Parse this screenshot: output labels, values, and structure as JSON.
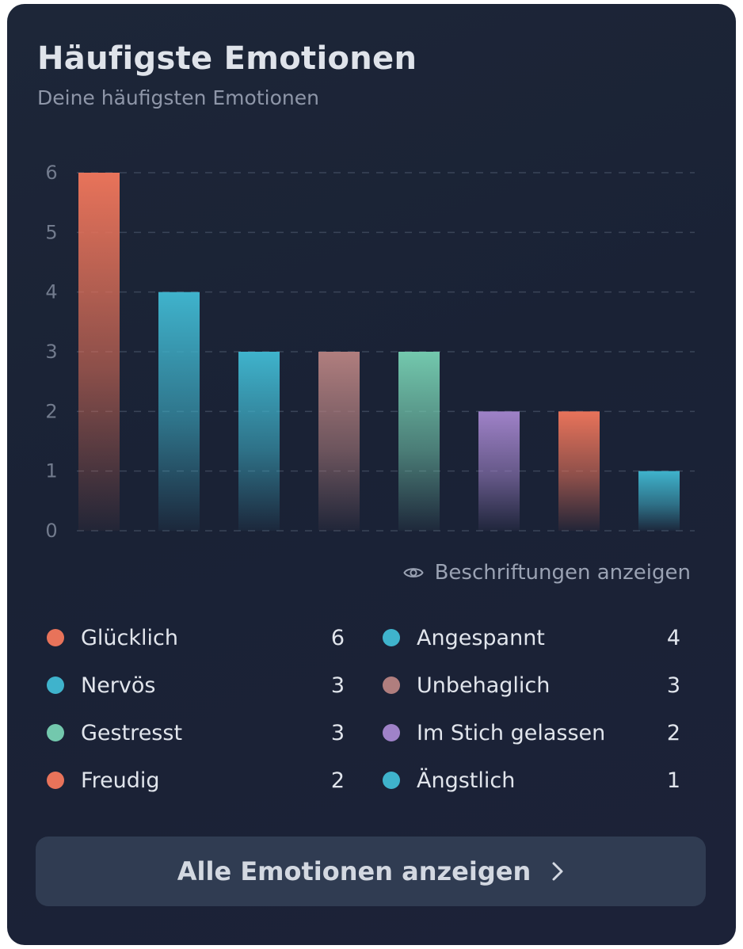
{
  "header": {
    "title": "Häufigste Emotionen",
    "subtitle": "Deine häufigsten Emotionen"
  },
  "chart_data": {
    "type": "bar",
    "categories": [
      "Glücklich",
      "Angespannt",
      "Nervös",
      "Unbehaglich",
      "Gestresst",
      "Im Stich gelassen",
      "Freudig",
      "Ängstlich"
    ],
    "values": [
      6,
      4,
      3,
      3,
      3,
      2,
      2,
      1
    ],
    "colors": [
      "#e8735a",
      "#3fb3cc",
      "#3fb3cc",
      "#b07e7e",
      "#73c8ad",
      "#9f82c8",
      "#e8735a",
      "#3fb3cc"
    ],
    "ylim": [
      0,
      6
    ],
    "yticks": [
      "0",
      "1",
      "2",
      "3",
      "4",
      "5",
      "6"
    ],
    "grid": true,
    "title": "",
    "xlabel": "",
    "ylabel": ""
  },
  "toggle": {
    "label": "Beschriftungen anzeigen",
    "icon": "eye-icon"
  },
  "legend": [
    {
      "label": "Glücklich",
      "count": "6",
      "color": "#e8735a"
    },
    {
      "label": "Angespannt",
      "count": "4",
      "color": "#3fb3cc"
    },
    {
      "label": "Nervös",
      "count": "3",
      "color": "#3fb3cc"
    },
    {
      "label": "Unbehaglich",
      "count": "3",
      "color": "#b07e7e"
    },
    {
      "label": "Gestresst",
      "count": "3",
      "color": "#73c8ad"
    },
    {
      "label": "Im Stich gelassen",
      "count": "2",
      "color": "#9f82c8"
    },
    {
      "label": "Freudig",
      "count": "2",
      "color": "#e8735a"
    },
    {
      "label": "Ängstlich",
      "count": "1",
      "color": "#3fb3cc"
    }
  ],
  "cta": {
    "label": "Alle Emotionen anzeigen",
    "icon": "chevron-right-icon"
  }
}
